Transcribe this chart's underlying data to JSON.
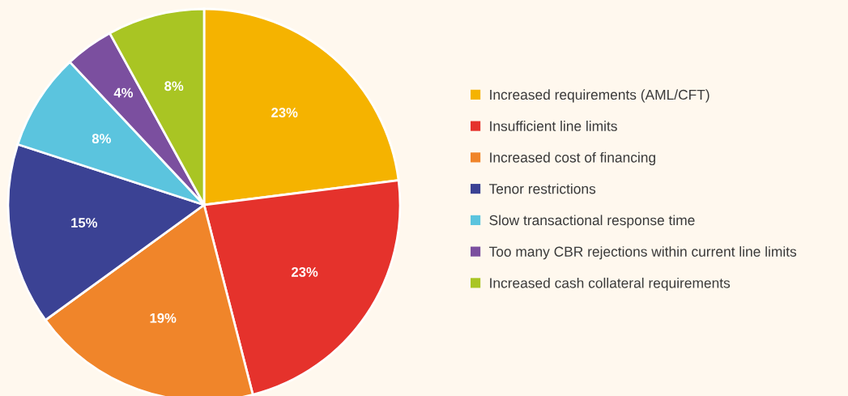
{
  "chart_data": {
    "type": "pie",
    "categories": [
      "Increased requirements (AML/CFT)",
      "Insufficient line limits",
      "Increased cost of financing",
      "Tenor restrictions",
      "Slow transactional response time",
      "Too many CBR rejections within current line limits",
      "Increased cash collateral requirements"
    ],
    "values": [
      23,
      23,
      19,
      15,
      8,
      4,
      8
    ],
    "colors": [
      "#f5b300",
      "#e5322c",
      "#f0852a",
      "#3b4294",
      "#5bc4de",
      "#7b4f9f",
      "#a9c523"
    ],
    "value_labels": [
      "23%",
      "23%",
      "19%",
      "15%",
      "8%",
      "4%",
      "8%"
    ],
    "legend": "right"
  }
}
